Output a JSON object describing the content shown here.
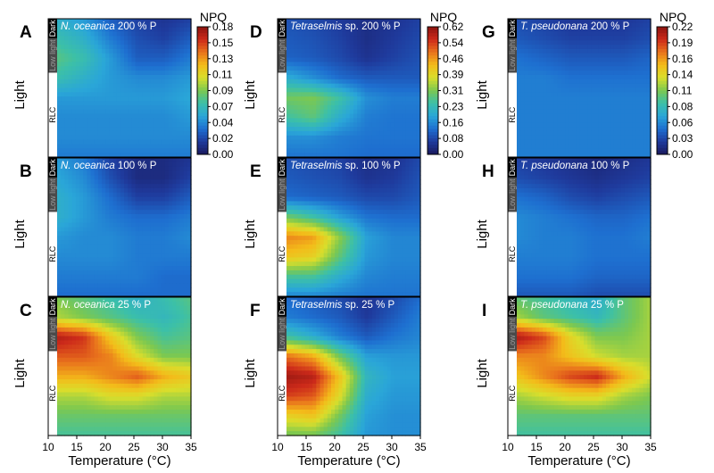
{
  "figure": {
    "y_axis_label": "Light",
    "x_axis_label": "Temperature (°C)",
    "x_ticks": [
      10,
      15,
      20,
      25,
      30,
      35
    ],
    "light_bands": [
      "Dark",
      "Low light",
      "RLC"
    ],
    "colorbar_title": "NPQ",
    "colormap": [
      "#1a1a5e",
      "#1f3a9c",
      "#1e6fd0",
      "#2aa6d8",
      "#3cc0a8",
      "#7cc850",
      "#d9de2c",
      "#f3bc1a",
      "#e9731c",
      "#cc2a1a",
      "#8c1410"
    ]
  },
  "chart_data": [
    {
      "type": "heatmap",
      "letter": "A",
      "title_species": "N. oceanica",
      "title_rest": " 200 % P",
      "colorbar_ticks": [
        "0.18",
        "0.15",
        "0.13",
        "0.11",
        "0.09",
        "0.07",
        "0.04",
        "0.02",
        "0.00"
      ],
      "clim": [
        0,
        0.18
      ],
      "x": [
        10,
        15,
        20,
        25,
        30,
        35
      ],
      "y_rows": [
        "Dark",
        "Dark",
        "Low light",
        "Low light",
        "RLC",
        "RLC",
        "RLC",
        "RLC"
      ],
      "z": [
        [
          0.06,
          0.05,
          0.03,
          0.02,
          0.015,
          0.02
        ],
        [
          0.07,
          0.06,
          0.04,
          0.025,
          0.02,
          0.03
        ],
        [
          0.08,
          0.07,
          0.05,
          0.03,
          0.03,
          0.04
        ],
        [
          0.07,
          0.06,
          0.05,
          0.045,
          0.045,
          0.05
        ],
        [
          0.05,
          0.05,
          0.05,
          0.05,
          0.05,
          0.055
        ],
        [
          0.045,
          0.045,
          0.045,
          0.045,
          0.045,
          0.05
        ],
        [
          0.045,
          0.045,
          0.045,
          0.045,
          0.045,
          0.045
        ],
        [
          0.04,
          0.04,
          0.04,
          0.04,
          0.04,
          0.04
        ]
      ]
    },
    {
      "type": "heatmap",
      "letter": "B",
      "title_species": "N. oceanica",
      "title_rest": " 100 % P",
      "colorbar_ticks": null,
      "clim": [
        0,
        0.18
      ],
      "x": [
        10,
        15,
        20,
        25,
        30,
        35
      ],
      "y_rows": [
        "Dark",
        "Dark",
        "Low light",
        "Low light",
        "RLC",
        "RLC",
        "RLC",
        "RLC"
      ],
      "z": [
        [
          0.05,
          0.04,
          0.02,
          0.01,
          0.01,
          0.015
        ],
        [
          0.055,
          0.045,
          0.025,
          0.01,
          0.01,
          0.02
        ],
        [
          0.06,
          0.05,
          0.035,
          0.02,
          0.02,
          0.03
        ],
        [
          0.06,
          0.05,
          0.04,
          0.035,
          0.035,
          0.04
        ],
        [
          0.05,
          0.045,
          0.045,
          0.04,
          0.04,
          0.045
        ],
        [
          0.045,
          0.045,
          0.045,
          0.04,
          0.04,
          0.04
        ],
        [
          0.04,
          0.04,
          0.04,
          0.04,
          0.035,
          0.035
        ],
        [
          0.035,
          0.035,
          0.035,
          0.035,
          0.035,
          0.035
        ]
      ]
    },
    {
      "type": "heatmap",
      "letter": "C",
      "title_species": "N. oceanica",
      "title_rest": " 25 % P",
      "colorbar_ticks": null,
      "clim": [
        0,
        0.18
      ],
      "x": [
        10,
        15,
        20,
        25,
        30,
        35
      ],
      "y_rows": [
        "Dark",
        "Dark",
        "Low light",
        "Low light",
        "RLC",
        "RLC",
        "RLC",
        "RLC"
      ],
      "z": [
        [
          0.09,
          0.08,
          0.07,
          0.06,
          0.07,
          0.08
        ],
        [
          0.1,
          0.09,
          0.08,
          0.07,
          0.065,
          0.075
        ],
        [
          0.17,
          0.16,
          0.12,
          0.09,
          0.075,
          0.08
        ],
        [
          0.15,
          0.15,
          0.14,
          0.11,
          0.09,
          0.09
        ],
        [
          0.13,
          0.13,
          0.14,
          0.15,
          0.13,
          0.12
        ],
        [
          0.1,
          0.1,
          0.11,
          0.11,
          0.1,
          0.1
        ],
        [
          0.085,
          0.085,
          0.085,
          0.085,
          0.085,
          0.085
        ],
        [
          0.075,
          0.075,
          0.075,
          0.075,
          0.075,
          0.075
        ]
      ]
    },
    {
      "type": "heatmap",
      "letter": "D",
      "title_species": "Tetraselmis",
      "title_rest": " sp. 200 % P",
      "colorbar_ticks": [
        "0.62",
        "0.54",
        "0.46",
        "0.39",
        "0.31",
        "0.23",
        "0.16",
        "0.08",
        "0.00"
      ],
      "clim": [
        0,
        0.62
      ],
      "x": [
        10,
        15,
        20,
        25,
        30,
        35
      ],
      "y_rows": [
        "Dark",
        "Dark",
        "Low light",
        "Low light",
        "RLC",
        "RLC",
        "RLC",
        "RLC"
      ],
      "z": [
        [
          0.09,
          0.08,
          0.06,
          0.04,
          0.05,
          0.07
        ],
        [
          0.1,
          0.09,
          0.07,
          0.04,
          0.06,
          0.08
        ],
        [
          0.11,
          0.1,
          0.08,
          0.05,
          0.07,
          0.09
        ],
        [
          0.2,
          0.16,
          0.12,
          0.1,
          0.1,
          0.1
        ],
        [
          0.3,
          0.31,
          0.25,
          0.16,
          0.14,
          0.14
        ],
        [
          0.25,
          0.28,
          0.2,
          0.14,
          0.13,
          0.13
        ],
        [
          0.16,
          0.16,
          0.14,
          0.13,
          0.13,
          0.13
        ],
        [
          0.13,
          0.13,
          0.13,
          0.12,
          0.12,
          0.12
        ]
      ]
    },
    {
      "type": "heatmap",
      "letter": "E",
      "title_species": "Tetraselmis",
      "title_rest": " sp. 100 % P",
      "colorbar_ticks": null,
      "clim": [
        0,
        0.62
      ],
      "x": [
        10,
        15,
        20,
        25,
        30,
        35
      ],
      "y_rows": [
        "Dark",
        "Dark",
        "Low light",
        "Low light",
        "RLC",
        "RLC",
        "RLC",
        "RLC"
      ],
      "z": [
        [
          0.09,
          0.08,
          0.07,
          0.04,
          0.05,
          0.08
        ],
        [
          0.1,
          0.09,
          0.08,
          0.05,
          0.06,
          0.09
        ],
        [
          0.12,
          0.11,
          0.1,
          0.08,
          0.08,
          0.1
        ],
        [
          0.3,
          0.25,
          0.18,
          0.13,
          0.12,
          0.12
        ],
        [
          0.48,
          0.46,
          0.32,
          0.18,
          0.15,
          0.15
        ],
        [
          0.42,
          0.4,
          0.28,
          0.17,
          0.15,
          0.15
        ],
        [
          0.26,
          0.26,
          0.2,
          0.15,
          0.14,
          0.14
        ],
        [
          0.15,
          0.15,
          0.14,
          0.13,
          0.13,
          0.13
        ]
      ]
    },
    {
      "type": "heatmap",
      "letter": "F",
      "title_species": "Tetraselmis",
      "title_rest": " sp. 25 % P",
      "colorbar_ticks": null,
      "clim": [
        0,
        0.62
      ],
      "x": [
        10,
        15,
        20,
        25,
        30,
        35
      ],
      "y_rows": [
        "Dark",
        "Dark",
        "Low light",
        "Low light",
        "RLC",
        "RLC",
        "RLC",
        "RLC"
      ],
      "z": [
        [
          0.12,
          0.1,
          0.08,
          0.05,
          0.08,
          0.12
        ],
        [
          0.14,
          0.12,
          0.1,
          0.06,
          0.1,
          0.14
        ],
        [
          0.25,
          0.2,
          0.14,
          0.1,
          0.13,
          0.15
        ],
        [
          0.5,
          0.45,
          0.3,
          0.18,
          0.17,
          0.17
        ],
        [
          0.6,
          0.58,
          0.42,
          0.22,
          0.18,
          0.18
        ],
        [
          0.54,
          0.52,
          0.38,
          0.2,
          0.17,
          0.17
        ],
        [
          0.4,
          0.42,
          0.3,
          0.18,
          0.16,
          0.16
        ],
        [
          0.3,
          0.3,
          0.25,
          0.17,
          0.16,
          0.16
        ]
      ]
    },
    {
      "type": "heatmap",
      "letter": "G",
      "title_species": "T. pseudonana",
      "title_rest": " 200 % P",
      "colorbar_ticks": [
        "0.22",
        "0.19",
        "0.16",
        "0.14",
        "0.11",
        "0.08",
        "0.06",
        "0.03",
        "0.00"
      ],
      "clim": [
        0,
        0.22
      ],
      "x": [
        10,
        15,
        20,
        25,
        30,
        35
      ],
      "y_rows": [
        "Dark",
        "Dark",
        "Low light",
        "Low light",
        "RLC",
        "RLC",
        "RLC",
        "RLC"
      ],
      "z": [
        [
          0.03,
          0.025,
          0.02,
          0.02,
          0.02,
          0.025
        ],
        [
          0.035,
          0.03,
          0.025,
          0.025,
          0.025,
          0.03
        ],
        [
          0.045,
          0.04,
          0.035,
          0.035,
          0.035,
          0.04
        ],
        [
          0.05,
          0.05,
          0.045,
          0.045,
          0.045,
          0.045
        ],
        [
          0.05,
          0.05,
          0.05,
          0.05,
          0.05,
          0.05
        ],
        [
          0.05,
          0.05,
          0.05,
          0.05,
          0.05,
          0.05
        ],
        [
          0.05,
          0.05,
          0.05,
          0.05,
          0.05,
          0.05
        ],
        [
          0.05,
          0.05,
          0.05,
          0.05,
          0.05,
          0.05
        ]
      ]
    },
    {
      "type": "heatmap",
      "letter": "H",
      "title_species": "T. pseudonana",
      "title_rest": " 100 % P",
      "colorbar_ticks": null,
      "clim": [
        0,
        0.22
      ],
      "x": [
        10,
        15,
        20,
        25,
        30,
        35
      ],
      "y_rows": [
        "Dark",
        "Dark",
        "Low light",
        "Low light",
        "RLC",
        "RLC",
        "RLC",
        "RLC"
      ],
      "z": [
        [
          0.025,
          0.02,
          0.015,
          0.01,
          0.015,
          0.02
        ],
        [
          0.03,
          0.025,
          0.02,
          0.015,
          0.02,
          0.025
        ],
        [
          0.045,
          0.04,
          0.03,
          0.025,
          0.03,
          0.035
        ],
        [
          0.055,
          0.05,
          0.045,
          0.04,
          0.04,
          0.045
        ],
        [
          0.055,
          0.05,
          0.05,
          0.045,
          0.045,
          0.05
        ],
        [
          0.05,
          0.05,
          0.05,
          0.045,
          0.045,
          0.045
        ],
        [
          0.045,
          0.045,
          0.045,
          0.04,
          0.04,
          0.04
        ],
        [
          0.035,
          0.035,
          0.035,
          0.03,
          0.03,
          0.03
        ]
      ]
    },
    {
      "type": "heatmap",
      "letter": "I",
      "title_species": "T. pseudonana",
      "title_rest": " 25 % P",
      "colorbar_ticks": null,
      "clim": [
        0,
        0.22
      ],
      "x": [
        10,
        15,
        20,
        25,
        30,
        35
      ],
      "y_rows": [
        "Dark",
        "Dark",
        "Low light",
        "Low light",
        "RLC",
        "RLC",
        "RLC",
        "RLC"
      ],
      "z": [
        [
          0.1,
          0.09,
          0.08,
          0.07,
          0.1,
          0.12
        ],
        [
          0.12,
          0.1,
          0.09,
          0.08,
          0.1,
          0.12
        ],
        [
          0.21,
          0.19,
          0.14,
          0.11,
          0.11,
          0.12
        ],
        [
          0.17,
          0.17,
          0.15,
          0.13,
          0.12,
          0.12
        ],
        [
          0.15,
          0.17,
          0.19,
          0.2,
          0.16,
          0.13
        ],
        [
          0.12,
          0.13,
          0.14,
          0.14,
          0.12,
          0.11
        ],
        [
          0.1,
          0.1,
          0.1,
          0.1,
          0.1,
          0.1
        ],
        [
          0.09,
          0.09,
          0.09,
          0.09,
          0.09,
          0.09
        ]
      ]
    }
  ]
}
